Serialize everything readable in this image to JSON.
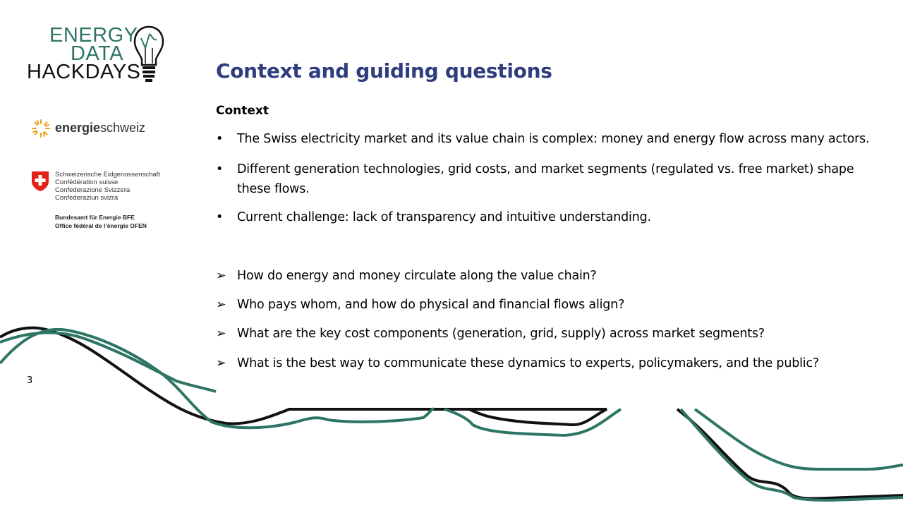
{
  "logos": {
    "edh": {
      "line1": "ENERGY",
      "line2": "DATA",
      "line3": "HACKDAYS",
      "icon": "lightbulb-icon"
    },
    "energieschweiz": {
      "bold": "energie",
      "regular": "schweiz",
      "icon": "sun-icon"
    },
    "federal": {
      "lines": [
        "Schweizerische Eidgenossenschaft",
        "Confédération suisse",
        "Confederazione Svizzera",
        "Confederaziun svizra"
      ],
      "office": [
        "Bundesamt für Energie BFE",
        "Office fédéral de l’énergie OFEN"
      ],
      "icon": "swiss-shield-icon"
    }
  },
  "slide": {
    "title": "Context and guiding questions",
    "context_heading": "Context",
    "context_bullets": [
      "The Swiss electricity market and its value chain is complex: money and energy flow across many actors.",
      "Different generation technologies, grid costs, and market segments (regulated vs. free market) shape these flows.",
      "Current challenge: lack of transparency and intuitive understanding."
    ],
    "questions": [
      "How do energy and money circulate along the value chain?",
      "Who pays whom, and how do physical and financial flows align?",
      "What are the key cost components (generation, grid, supply) across market segments?",
      "What is the best way to communicate these dynamics to experts, policymakers, and the public?"
    ],
    "bullet_mark": "•",
    "question_mark": "➢",
    "page_number": "3"
  },
  "colors": {
    "title": "#2f3c7e",
    "teal": "#2e7566",
    "black": "#111111",
    "swiss_red": "#e2231a",
    "sun_orange": "#f39c12"
  }
}
